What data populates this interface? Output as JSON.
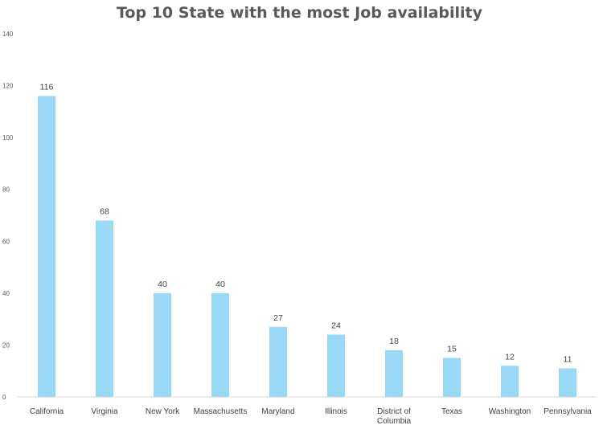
{
  "chart_data": {
    "type": "bar",
    "title": "Top 10 State with the most Job availability",
    "xlabel": "",
    "ylabel": "",
    "categories": [
      "California",
      "Virginia",
      "New York",
      "Massachusetts",
      "Maryland",
      "Illinois",
      "District of Columbia",
      "Texas",
      "Washington",
      "Pennsylvania"
    ],
    "values": [
      116,
      68,
      40,
      40,
      27,
      24,
      18,
      15,
      12,
      11
    ],
    "ylim": [
      0,
      140
    ],
    "yticks": [
      0,
      20,
      40,
      60,
      80,
      100,
      120,
      140
    ],
    "grid": false,
    "legend": "none",
    "bar_color": "#97d9f6",
    "axis_color": "#d9d9d9"
  }
}
